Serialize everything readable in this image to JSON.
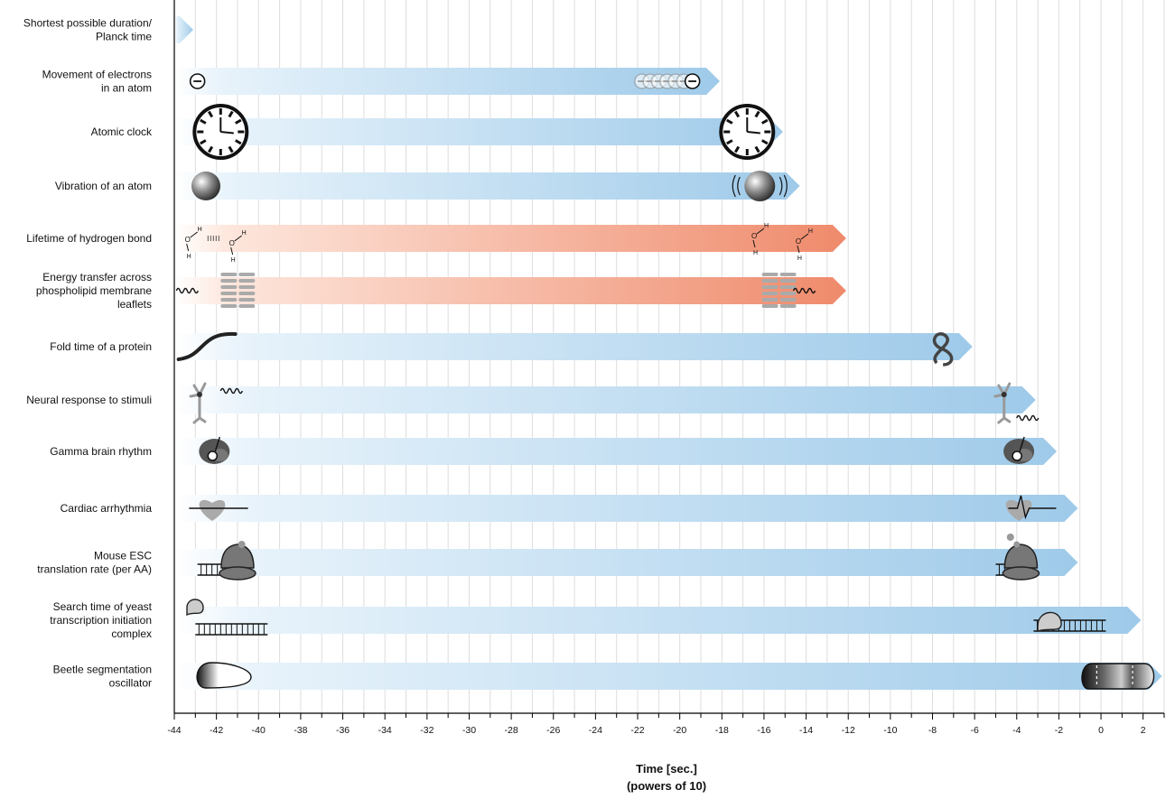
{
  "chart_data": {
    "type": "bar",
    "orientation": "horizontal",
    "title": "",
    "xlabel": "Time [sec.]",
    "xlabel_sub": "(powers of 10)",
    "xlim": [
      -44,
      3
    ],
    "xticks": [
      -44,
      -42,
      -40,
      -38,
      -36,
      -34,
      -32,
      -30,
      -28,
      -26,
      -24,
      -22,
      -20,
      -18,
      -16,
      -14,
      -12,
      -10,
      -8,
      -6,
      -4,
      -2,
      0,
      2
    ],
    "grid": true,
    "colors": {
      "blue": "#9ecae9",
      "blue_light": "#e8f3fb",
      "red": "#ef8a6b",
      "red_light": "#fde6dc",
      "grid": "#dddddd",
      "icon_gray": "#888888"
    },
    "rows": [
      {
        "lines": [
          "Shortest possible duration/",
          "Planck time"
        ],
        "start": -44,
        "end": -43.1,
        "color": "blue",
        "start_icon": "none",
        "end_icon": "none"
      },
      {
        "lines": [
          "Movement of electrons",
          "in an atom"
        ],
        "start": -44,
        "end": -18.1,
        "color": "blue",
        "start_icon": "electron-icon",
        "end_icon": "electron-trail-icon"
      },
      {
        "lines": [
          "Atomic clock"
        ],
        "start": -44,
        "end": -15.1,
        "color": "blue",
        "start_icon": "clock-icon",
        "end_icon": "clock-icon"
      },
      {
        "lines": [
          "Vibration of an atom"
        ],
        "start": -44,
        "end": -14.3,
        "color": "blue",
        "start_icon": "atom-sphere-icon",
        "end_icon": "vibrating-atom-icon"
      },
      {
        "lines": [
          "Lifetime of hydrogen bond"
        ],
        "start": -44,
        "end": -12.1,
        "color": "red",
        "start_icon": "hydrogen-bond-icon",
        "end_icon": "water-molecules-icon"
      },
      {
        "lines": [
          "Energy transfer across",
          "phospholipid membrane",
          "leaflets"
        ],
        "start": -44,
        "end": -12.1,
        "color": "red",
        "start_icon": "membrane-icon",
        "end_icon": "membrane-icon"
      },
      {
        "lines": [
          "Fold time of a protein"
        ],
        "start": -44,
        "end": -6.1,
        "color": "blue",
        "start_icon": "unfolded-protein-icon",
        "end_icon": "folded-protein-icon"
      },
      {
        "lines": [
          "Neural response to stimuli"
        ],
        "start": -44,
        "end": -3.1,
        "color": "blue",
        "start_icon": "neuron-icon",
        "end_icon": "neuron-icon"
      },
      {
        "lines": [
          "Gamma brain rhythm"
        ],
        "start": -44,
        "end": -2.1,
        "color": "blue",
        "start_icon": "brain-icon",
        "end_icon": "brain-icon"
      },
      {
        "lines": [
          "Cardiac arrhythmia"
        ],
        "start": -44,
        "end": -1.1,
        "color": "blue",
        "start_icon": "heart-icon",
        "end_icon": "heart-ecg-icon"
      },
      {
        "lines": [
          "Mouse ESC",
          "translation rate (per AA)"
        ],
        "start": -44,
        "end": -1.1,
        "color": "blue",
        "start_icon": "ribosome-icon",
        "end_icon": "ribosome-icon"
      },
      {
        "lines": [
          "Search time of yeast",
          "transcription initiation",
          "complex"
        ],
        "start": -44,
        "end": 1.9,
        "color": "blue",
        "start_icon": "dna-complex-icon",
        "end_icon": "dna-complex-icon"
      },
      {
        "lines": [
          "Beetle segmentation",
          "oscillator"
        ],
        "start": -44,
        "end": 2.9,
        "color": "blue",
        "start_icon": "embryo-icon",
        "end_icon": "segmented-embryo-icon"
      }
    ]
  }
}
